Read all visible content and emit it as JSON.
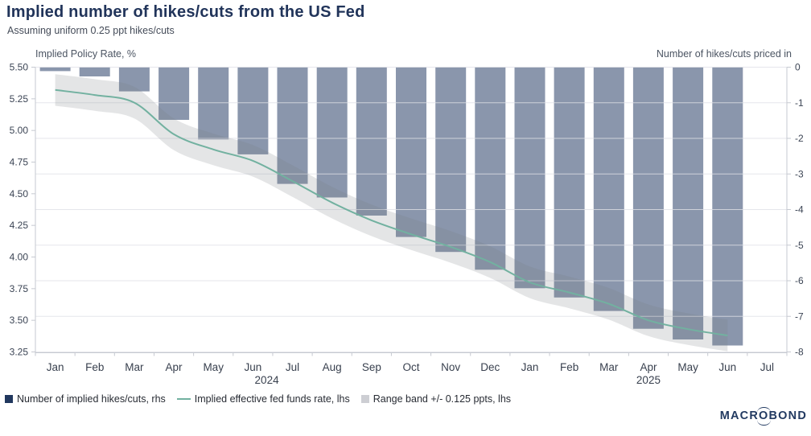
{
  "header": {
    "title": "Implied number of hikes/cuts from the US Fed",
    "subtitle": "Assuming uniform 0.25 ppt hikes/cuts"
  },
  "colors": {
    "bar_fill": "#8a96ac",
    "line": "#72b1a0",
    "band_fill": "rgba(120,123,132,0.20)",
    "legend_bar_swatch": "#21375e",
    "legend_band_swatch": "#cdced3",
    "gridline": "rgba(222,224,230,0.8)",
    "axis_line": "#c6c9d1",
    "title_navy": "#21345a"
  },
  "logo": {
    "part1": "MACR",
    "o": "O",
    "part2": "BOND"
  },
  "chart_data": {
    "type": "combo",
    "x_months": [
      "Jan",
      "Feb",
      "Mar",
      "Apr",
      "May",
      "Jun",
      "Jul",
      "Aug",
      "Sep",
      "Oct",
      "Nov",
      "Dec",
      "Jan",
      "Feb",
      "Mar",
      "Apr",
      "May",
      "Jun",
      "Jul"
    ],
    "x_years": [
      {
        "label": "2024",
        "slot": 5.85
      },
      {
        "label": "2025",
        "slot": 15.5
      }
    ],
    "left_axis": {
      "title": "Implied Policy Rate, %",
      "min": 3.25,
      "max": 5.5,
      "ticks": [
        "5.50",
        "5.25",
        "5.00",
        "4.75",
        "4.50",
        "4.25",
        "4.00",
        "3.75",
        "3.50",
        "3.25"
      ],
      "tick_values": [
        5.5,
        5.25,
        5.0,
        4.75,
        4.5,
        4.25,
        4.0,
        3.75,
        3.5,
        3.25
      ]
    },
    "right_axis": {
      "title": "Number of hikes/cuts priced in",
      "min": -8,
      "max": 0,
      "ticks": [
        "0",
        "-1",
        "-2",
        "-3",
        "-4",
        "-5",
        "-6",
        "-7",
        "-8"
      ],
      "tick_values": [
        0,
        -1,
        -2,
        -3,
        -4,
        -5,
        -6,
        -7,
        -8
      ]
    },
    "series": [
      {
        "name": "Number of implied hikes/cuts, rhs",
        "type": "bar",
        "axis": "right",
        "values": [
          -0.11,
          -0.26,
          -0.68,
          -1.48,
          -2.03,
          -2.45,
          -3.28,
          -3.66,
          -4.17,
          -4.77,
          -5.19,
          -5.69,
          -6.21,
          -6.47,
          -6.85,
          -7.35,
          -7.65,
          -7.82
        ]
      },
      {
        "name": "Implied effective fed funds rate, lhs",
        "type": "line",
        "axis": "left",
        "values": [
          5.32,
          5.28,
          5.22,
          4.97,
          4.85,
          4.76,
          4.6,
          4.43,
          4.29,
          4.18,
          4.08,
          3.96,
          3.8,
          3.72,
          3.63,
          3.5,
          3.43,
          3.38
        ]
      },
      {
        "name": "Range band +/- 0.125 ppts, lhs",
        "type": "band",
        "axis": "left",
        "half_width": 0.125
      }
    ],
    "grid": "horizontal",
    "legend_position": "bottom"
  }
}
